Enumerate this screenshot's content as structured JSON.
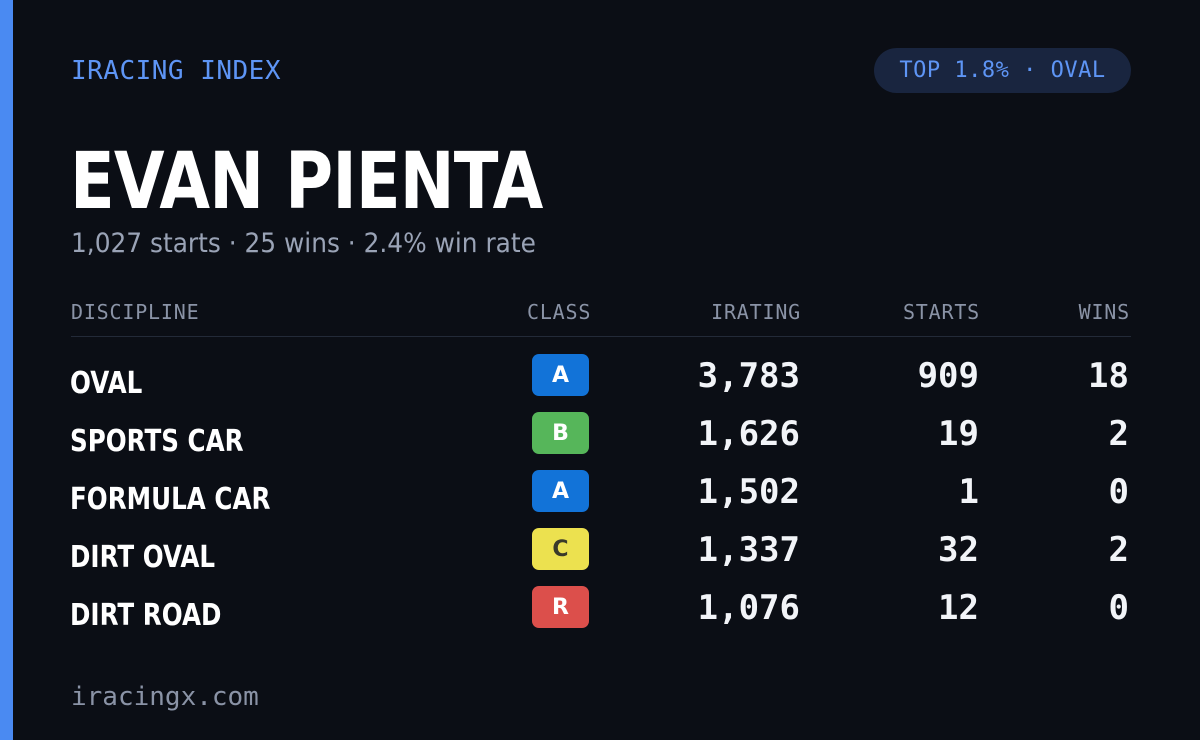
{
  "brand": "IRACING INDEX",
  "rank_badge": "TOP 1.8% · OVAL",
  "driver": {
    "name": "EVAN PIENTA",
    "summary": "1,027 starts · 25 wins · 2.4% win rate"
  },
  "table": {
    "headers": {
      "discipline": "DISCIPLINE",
      "class": "CLASS",
      "irating": "IRATING",
      "starts": "STARTS",
      "wins": "WINS"
    },
    "rows": [
      {
        "discipline": "OVAL",
        "class": "A",
        "class_color": "#1273d8",
        "class_text_color": "#ffffff",
        "irating": "3,783",
        "starts": "909",
        "wins": "18"
      },
      {
        "discipline": "SPORTS CAR",
        "class": "B",
        "class_color": "#56b65a",
        "class_text_color": "#ffffff",
        "irating": "1,626",
        "starts": "19",
        "wins": "2"
      },
      {
        "discipline": "FORMULA CAR",
        "class": "A",
        "class_color": "#1273d8",
        "class_text_color": "#ffffff",
        "irating": "1,502",
        "starts": "1",
        "wins": "0"
      },
      {
        "discipline": "DIRT OVAL",
        "class": "C",
        "class_color": "#ece14f",
        "class_text_color": "#3a3a2a",
        "irating": "1,337",
        "starts": "32",
        "wins": "2"
      },
      {
        "discipline": "DIRT ROAD",
        "class": "R",
        "class_color": "#dc4f4b",
        "class_text_color": "#ffffff",
        "irating": "1,076",
        "starts": "12",
        "wins": "0"
      }
    ]
  },
  "footer": "iracingx.com",
  "colors": {
    "accent": "#4a8af2",
    "background": "#0b0e15",
    "badge_bg": "#19253f"
  }
}
